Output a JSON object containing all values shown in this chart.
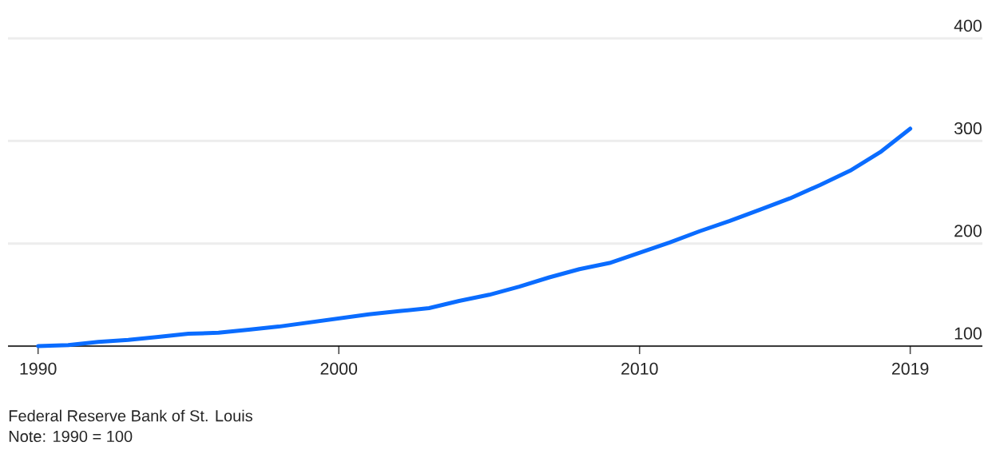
{
  "chart_data": {
    "type": "line",
    "x": [
      1990,
      1991,
      1992,
      1993,
      1994,
      1995,
      1996,
      1997,
      1998,
      1999,
      2000,
      2001,
      2002,
      2003,
      2004,
      2005,
      2006,
      2007,
      2008,
      2009,
      2010,
      2011,
      2012,
      2013,
      2014,
      2015,
      2016,
      2017,
      2018,
      2019
    ],
    "series": [
      {
        "color": "#0a6cff",
        "values": [
          100,
          101,
          104,
          106,
          109,
          112,
          113,
          116,
          119,
          123,
          127,
          131,
          134,
          137,
          144,
          150,
          158,
          167,
          175,
          181,
          191,
          201,
          212,
          222,
          233,
          244,
          257,
          271,
          289,
          312
        ]
      }
    ],
    "xlim": [
      1989,
      2021.4
    ],
    "ylim": [
      100,
      400
    ],
    "xticks": [
      1990,
      2000,
      2010,
      2019
    ],
    "yticks": [
      100,
      200,
      300,
      400
    ],
    "grid": "y",
    "annotations": [
      "Federal Reserve Bank of St. Louis",
      "Note: 1990 = 100"
    ]
  }
}
